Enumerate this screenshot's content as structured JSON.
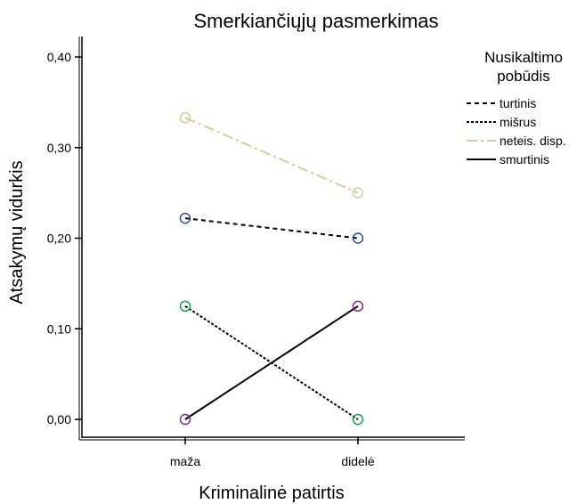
{
  "chart_data": {
    "type": "line",
    "title": "Smerkiančiųjų pasmerkimas",
    "xlabel": "Kriminalinė patirtis",
    "ylabel": "Atsakymų vidurkis",
    "categories": [
      "maža",
      "didelė"
    ],
    "ylim": [
      0,
      0.4
    ],
    "yticks": [
      "0,00",
      "0,10",
      "0,20",
      "0,30",
      "0,40"
    ],
    "grid": false,
    "legend": {
      "title_line1": "Nusikaltimo",
      "title_line2": "pobūdis",
      "position": "right"
    },
    "series": [
      {
        "name": "turtinis",
        "values": [
          0.222,
          0.2
        ],
        "color": "#000000",
        "marker_color": "#2e4c9c",
        "dash": "5,4"
      },
      {
        "name": "mišrus",
        "values": [
          0.125,
          0.0
        ],
        "color": "#000000",
        "marker_color": "#1aa34a",
        "dash": "3,2"
      },
      {
        "name": "neteis. disp.",
        "values": [
          0.333,
          0.25
        ],
        "color": "#d4cf9e",
        "marker_color": "#d4cf9e",
        "dash": "12,4,3,4"
      },
      {
        "name": "smurtinis",
        "values": [
          0.0,
          0.125
        ],
        "color": "#000000",
        "marker_color": "#8a2c8a",
        "dash": ""
      }
    ]
  }
}
